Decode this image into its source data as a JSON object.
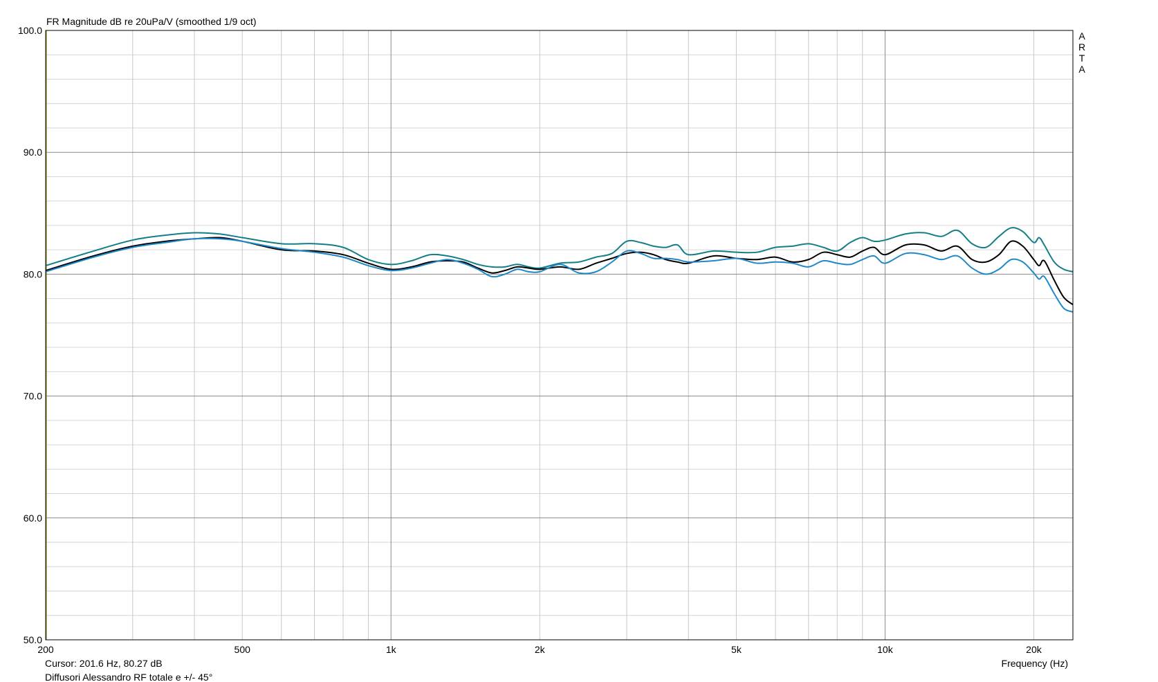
{
  "chart_data": {
    "type": "line",
    "title": "FR Magnitude dB re 20uPa/V (smoothed 1/9 oct)",
    "xlabel": "Frequency (Hz)",
    "ylabel": "",
    "x_scale": "log",
    "xlim": [
      200,
      24000
    ],
    "ylim": [
      50,
      100
    ],
    "grid": true,
    "x_tick_values": [
      200,
      500,
      1000,
      2000,
      5000,
      10000,
      20000
    ],
    "x_tick_labels": [
      "200",
      "500",
      "1k",
      "2k",
      "5k",
      "10k",
      "20k"
    ],
    "y_tick_values": [
      50,
      60,
      70,
      80,
      90,
      100
    ],
    "y_tick_labels": [
      "50.0",
      "60.0",
      "70.0",
      "80.0",
      "90.0",
      "100.0"
    ],
    "watermark": "ARTA",
    "cursor_text": "Cursor: 201.6 Hz, 80.27 dB",
    "footer_text": "Diffusori Alessandro RF totale e +/- 45°",
    "series": [
      {
        "color": "#137e86",
        "x": [
          200,
          250,
          300,
          350,
          400,
          450,
          500,
          600,
          700,
          800,
          900,
          1000,
          1100,
          1200,
          1300,
          1400,
          1500,
          1600,
          1700,
          1800,
          1900,
          2000,
          2200,
          2400,
          2600,
          2800,
          3000,
          3200,
          3400,
          3600,
          3800,
          4000,
          4500,
          5000,
          5500,
          6000,
          6500,
          7000,
          7500,
          8000,
          8500,
          9000,
          9500,
          10000,
          11000,
          12000,
          13000,
          14000,
          15000,
          16000,
          17000,
          18000,
          19000,
          20000,
          20500,
          21000,
          22000,
          23000,
          24000
        ],
        "y": [
          80.7,
          81.9,
          82.8,
          83.2,
          83.4,
          83.3,
          83.0,
          82.5,
          82.5,
          82.2,
          81.2,
          80.8,
          81.1,
          81.6,
          81.5,
          81.2,
          80.8,
          80.6,
          80.6,
          80.8,
          80.6,
          80.5,
          80.9,
          81.0,
          81.4,
          81.7,
          82.7,
          82.6,
          82.3,
          82.2,
          82.4,
          81.6,
          81.9,
          81.8,
          81.8,
          82.2,
          82.3,
          82.5,
          82.2,
          81.9,
          82.6,
          83.0,
          82.7,
          82.8,
          83.3,
          83.4,
          83.1,
          83.6,
          82.5,
          82.2,
          83.1,
          83.8,
          83.5,
          82.6,
          83.0,
          82.4,
          81.0,
          80.4,
          80.2
        ]
      },
      {
        "color": "#000000",
        "x": [
          200,
          250,
          300,
          350,
          400,
          450,
          500,
          600,
          700,
          800,
          900,
          1000,
          1100,
          1200,
          1300,
          1400,
          1500,
          1600,
          1700,
          1800,
          1900,
          2000,
          2200,
          2400,
          2600,
          2800,
          3000,
          3200,
          3400,
          3600,
          3800,
          4000,
          4500,
          5000,
          5500,
          6000,
          6500,
          7000,
          7500,
          8000,
          8500,
          9000,
          9500,
          10000,
          11000,
          12000,
          13000,
          14000,
          15000,
          16000,
          17000,
          18000,
          19000,
          20000,
          20500,
          21000,
          22000,
          23000,
          24000
        ],
        "y": [
          80.3,
          81.5,
          82.3,
          82.7,
          82.9,
          83.0,
          82.7,
          82.0,
          81.9,
          81.6,
          80.9,
          80.4,
          80.6,
          81.0,
          81.1,
          81.0,
          80.5,
          80.1,
          80.3,
          80.6,
          80.5,
          80.4,
          80.6,
          80.4,
          80.9,
          81.3,
          81.7,
          81.8,
          81.6,
          81.2,
          81.0,
          80.9,
          81.5,
          81.3,
          81.2,
          81.4,
          81.0,
          81.2,
          81.8,
          81.6,
          81.4,
          81.9,
          82.2,
          81.6,
          82.4,
          82.4,
          81.9,
          82.3,
          81.2,
          81.0,
          81.6,
          82.7,
          82.3,
          81.2,
          80.7,
          81.1,
          79.5,
          78.1,
          77.5
        ]
      },
      {
        "color": "#1f88c8",
        "x": [
          200,
          250,
          300,
          350,
          400,
          450,
          500,
          600,
          700,
          800,
          900,
          1000,
          1100,
          1200,
          1300,
          1400,
          1500,
          1600,
          1700,
          1800,
          1900,
          2000,
          2200,
          2400,
          2600,
          2800,
          3000,
          3200,
          3400,
          3600,
          3800,
          4000,
          4500,
          5000,
          5500,
          6000,
          6500,
          7000,
          7500,
          8000,
          8500,
          9000,
          9500,
          10000,
          11000,
          12000,
          13000,
          14000,
          15000,
          16000,
          17000,
          18000,
          19000,
          20000,
          20500,
          21000,
          22000,
          23000,
          24000
        ],
        "y": [
          80.2,
          81.4,
          82.2,
          82.6,
          82.9,
          82.9,
          82.7,
          82.1,
          81.8,
          81.4,
          80.7,
          80.3,
          80.5,
          80.9,
          81.2,
          80.9,
          80.4,
          79.8,
          80.0,
          80.4,
          80.2,
          80.2,
          80.8,
          80.1,
          80.2,
          81.0,
          81.9,
          81.7,
          81.3,
          81.3,
          81.2,
          81.0,
          81.1,
          81.3,
          80.9,
          81.0,
          80.9,
          80.6,
          81.1,
          80.9,
          80.8,
          81.2,
          81.5,
          80.9,
          81.7,
          81.6,
          81.2,
          81.5,
          80.5,
          80.0,
          80.4,
          81.2,
          81.0,
          80.1,
          79.6,
          79.8,
          78.4,
          77.2,
          76.9
        ]
      }
    ]
  }
}
